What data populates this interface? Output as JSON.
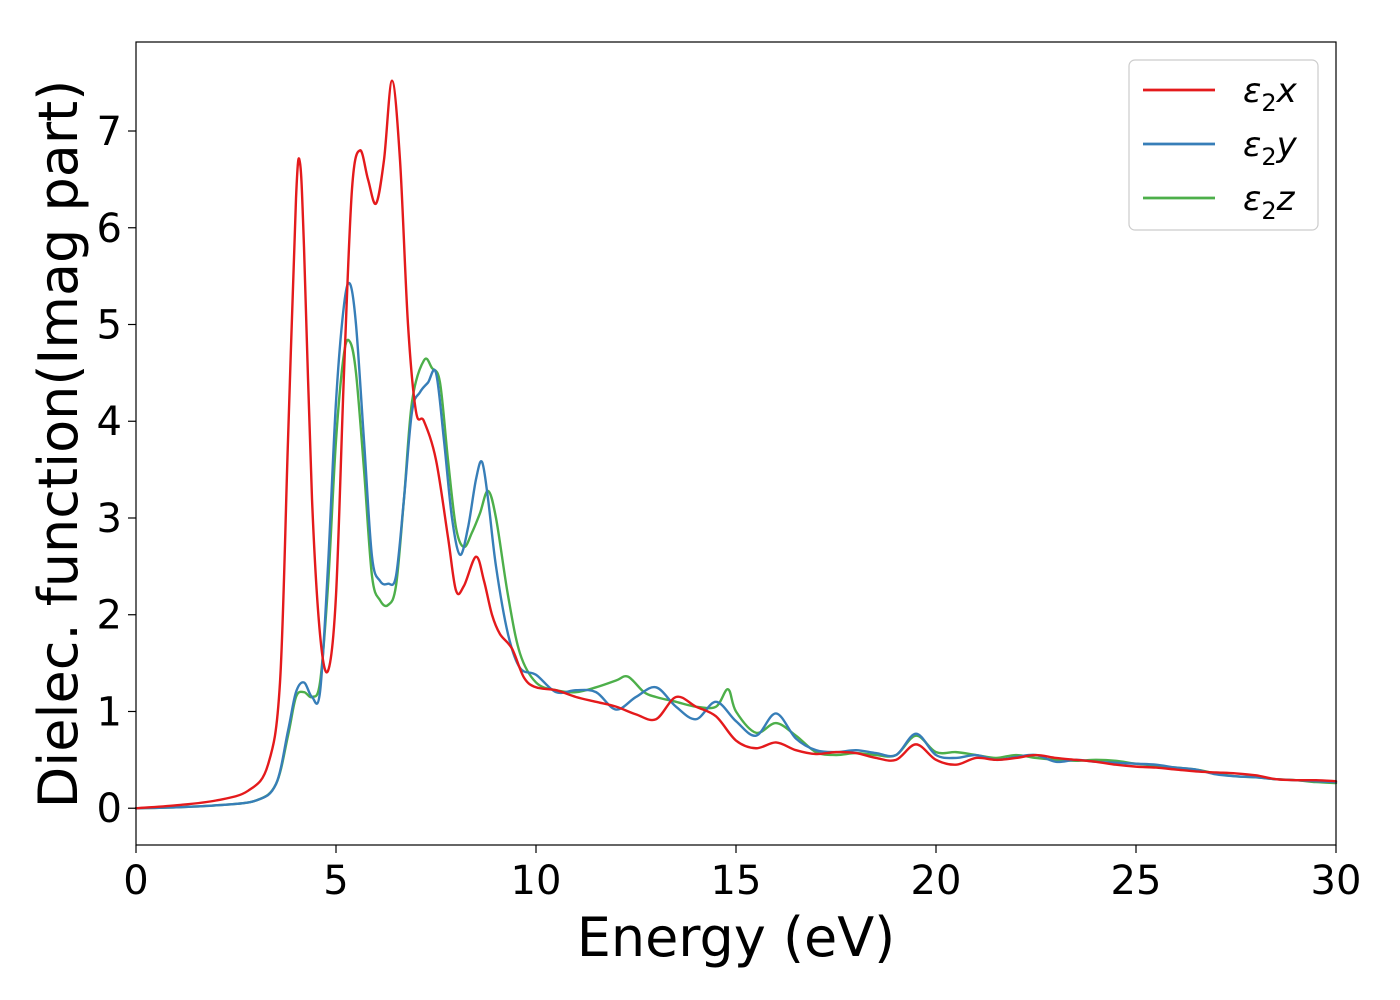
{
  "chart_data": {
    "type": "line",
    "title": "",
    "xlabel": "Energy (eV)",
    "ylabel": "Dielec. function(Imag part)",
    "xlim": [
      0,
      30
    ],
    "ylim": [
      -0.38,
      7.92
    ],
    "xticks": [
      0,
      5,
      10,
      15,
      20,
      25,
      30
    ],
    "yticks": [
      0,
      1,
      2,
      3,
      4,
      5,
      6,
      7
    ],
    "grid": false,
    "legend_position": "top-right",
    "series": [
      {
        "name": "ε2x",
        "legend_base": "ε",
        "legend_sub": "2",
        "legend_suffix": "x",
        "color": "#e41a1c",
        "x": [
          0,
          1,
          2,
          2.8,
          3.3,
          3.6,
          3.8,
          4.0,
          4.1,
          4.2,
          4.4,
          4.6,
          4.8,
          5.0,
          5.2,
          5.4,
          5.6,
          5.8,
          6.0,
          6.2,
          6.4,
          6.6,
          6.8,
          7.0,
          7.2,
          7.5,
          7.8,
          8.0,
          8.2,
          8.5,
          8.7,
          8.9,
          9.1,
          9.4,
          9.7,
          10.0,
          10.5,
          11,
          11.5,
          12,
          12.5,
          13,
          13.5,
          14,
          14.5,
          15,
          15.5,
          16,
          16.5,
          17,
          17.5,
          18,
          18.5,
          19,
          19.5,
          20,
          20.5,
          21,
          21.5,
          22,
          22.5,
          23,
          23.5,
          24,
          24.5,
          25,
          25.5,
          26,
          26.5,
          27,
          27.5,
          28,
          28.5,
          29,
          29.5,
          30
        ],
        "y": [
          0.0,
          0.03,
          0.08,
          0.18,
          0.45,
          1.3,
          3.8,
          6.3,
          6.67,
          5.8,
          3.2,
          1.8,
          1.42,
          2.2,
          4.5,
          6.4,
          6.8,
          6.5,
          6.25,
          6.7,
          7.52,
          6.7,
          5.0,
          4.1,
          4.0,
          3.6,
          2.8,
          2.25,
          2.3,
          2.6,
          2.35,
          2.0,
          1.8,
          1.65,
          1.35,
          1.25,
          1.22,
          1.15,
          1.1,
          1.05,
          0.97,
          0.92,
          1.15,
          1.05,
          0.95,
          0.7,
          0.62,
          0.68,
          0.6,
          0.56,
          0.58,
          0.57,
          0.52,
          0.5,
          0.66,
          0.5,
          0.45,
          0.52,
          0.5,
          0.52,
          0.55,
          0.52,
          0.5,
          0.48,
          0.45,
          0.43,
          0.42,
          0.4,
          0.38,
          0.37,
          0.36,
          0.34,
          0.3,
          0.29,
          0.29,
          0.28
        ]
      },
      {
        "name": "ε2y",
        "legend_base": "ε",
        "legend_sub": "2",
        "legend_suffix": "y",
        "color": "#377eb8",
        "x": [
          0,
          1,
          2,
          3,
          3.5,
          3.8,
          4.0,
          4.2,
          4.4,
          4.6,
          4.8,
          5.0,
          5.2,
          5.35,
          5.5,
          5.7,
          5.9,
          6.1,
          6.3,
          6.5,
          6.7,
          6.9,
          7.1,
          7.3,
          7.5,
          7.7,
          7.9,
          8.1,
          8.3,
          8.5,
          8.65,
          8.8,
          9.0,
          9.3,
          9.6,
          10.0,
          10.5,
          11,
          11.5,
          12,
          12.5,
          13,
          13.5,
          14,
          14.5,
          15,
          15.5,
          16,
          16.5,
          17,
          17.5,
          18,
          18.5,
          19,
          19.5,
          20,
          20.5,
          21,
          21.5,
          22,
          22.5,
          23,
          23.5,
          24,
          24.5,
          25,
          25.5,
          26,
          26.5,
          27,
          27.5,
          28,
          28.5,
          29,
          29.5,
          30
        ],
        "y": [
          0.0,
          0.01,
          0.03,
          0.08,
          0.25,
          0.8,
          1.2,
          1.3,
          1.15,
          1.2,
          2.5,
          4.2,
          5.2,
          5.42,
          5.0,
          3.8,
          2.6,
          2.35,
          2.32,
          2.4,
          3.2,
          4.1,
          4.3,
          4.4,
          4.5,
          3.8,
          3.0,
          2.62,
          2.9,
          3.4,
          3.58,
          3.2,
          2.5,
          1.8,
          1.45,
          1.38,
          1.2,
          1.22,
          1.2,
          1.02,
          1.15,
          1.25,
          1.05,
          0.92,
          1.1,
          0.9,
          0.75,
          0.98,
          0.72,
          0.6,
          0.58,
          0.6,
          0.57,
          0.55,
          0.77,
          0.55,
          0.52,
          0.55,
          0.5,
          0.53,
          0.55,
          0.48,
          0.5,
          0.48,
          0.47,
          0.46,
          0.45,
          0.42,
          0.4,
          0.35,
          0.33,
          0.32,
          0.3,
          0.29,
          0.28,
          0.27
        ]
      },
      {
        "name": "ε2z",
        "legend_base": "ε",
        "legend_sub": "2",
        "legend_suffix": "z",
        "color": "#4daf4a",
        "x": [
          0,
          1,
          2,
          3,
          3.5,
          3.8,
          4.0,
          4.2,
          4.4,
          4.6,
          4.8,
          5.0,
          5.2,
          5.35,
          5.5,
          5.7,
          5.9,
          6.1,
          6.3,
          6.5,
          6.7,
          6.9,
          7.2,
          7.4,
          7.6,
          7.8,
          8.0,
          8.2,
          8.4,
          8.6,
          8.8,
          9.0,
          9.3,
          9.6,
          10.0,
          10.5,
          11,
          11.5,
          12,
          12.3,
          12.7,
          13,
          13.5,
          14,
          14.5,
          14.8,
          15,
          15.5,
          16,
          16.5,
          17,
          17.5,
          18,
          18.5,
          19,
          19.5,
          20,
          20.5,
          21,
          21.5,
          22,
          22.5,
          23,
          23.5,
          24,
          24.5,
          25,
          25.5,
          26,
          26.5,
          27,
          27.5,
          28,
          28.5,
          29,
          29.5,
          30
        ],
        "y": [
          0.0,
          0.01,
          0.03,
          0.08,
          0.25,
          0.75,
          1.15,
          1.2,
          1.15,
          1.3,
          2.3,
          3.8,
          4.7,
          4.82,
          4.5,
          3.5,
          2.4,
          2.15,
          2.1,
          2.3,
          3.2,
          4.2,
          4.63,
          4.55,
          4.4,
          3.6,
          2.9,
          2.7,
          2.85,
          3.05,
          3.28,
          3.0,
          2.2,
          1.6,
          1.3,
          1.22,
          1.2,
          1.25,
          1.32,
          1.36,
          1.2,
          1.15,
          1.1,
          1.05,
          1.05,
          1.23,
          1.0,
          0.78,
          0.88,
          0.75,
          0.58,
          0.55,
          0.57,
          0.55,
          0.55,
          0.75,
          0.58,
          0.58,
          0.55,
          0.52,
          0.55,
          0.52,
          0.5,
          0.49,
          0.5,
          0.49,
          0.46,
          0.44,
          0.42,
          0.4,
          0.36,
          0.33,
          0.32,
          0.3,
          0.29,
          0.27,
          0.26
        ]
      }
    ]
  }
}
